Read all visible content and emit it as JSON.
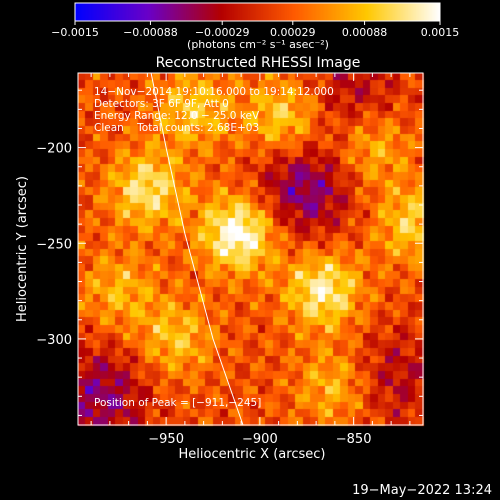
{
  "chart_data": {
    "type": "heatmap",
    "title": "Reconstructed RHESSI Image",
    "xlabel": "Heliocentric X (arcsec)",
    "ylabel": "Heliocentric Y (arcsec)",
    "xlim": [
      -997,
      -813
    ],
    "ylim": [
      -345,
      -161
    ],
    "x_ticks": [
      -950,
      -900,
      -850
    ],
    "y_ticks": [
      -200,
      -250,
      -300
    ],
    "x_tick_labels": [
      "−950",
      "−900",
      "−850"
    ],
    "y_tick_labels": [
      "−200",
      "−250",
      "−300"
    ],
    "colorbar": {
      "range": [
        -0.0015,
        0.0015
      ],
      "ticks": [
        -0.0015,
        -0.00088,
        -0.00029,
        0.00029,
        0.00088,
        0.0015
      ],
      "tick_labels": [
        "−0.0015",
        "−0.00088",
        "−0.00029",
        "0.00029",
        "0.00088",
        "0.0015"
      ],
      "label": "(photons cm⁻² s⁻¹ asec⁻²)",
      "colors": [
        "#0000ff",
        "#6a00c8",
        "#b40000",
        "#ff5a00",
        "#ffc800",
        "#ffffff"
      ]
    },
    "peak": {
      "x": -911,
      "y": -245
    },
    "sources": [
      {
        "x": -911,
        "y": -245,
        "intensity": 0.00138
      },
      {
        "x": -866,
        "y": -275,
        "intensity": 0.0011
      },
      {
        "x": -960,
        "y": -222,
        "intensity": 0.00098
      },
      {
        "x": -887,
        "y": -185,
        "intensity": 0.00085
      },
      {
        "x": -818,
        "y": -240,
        "intensity": 0.0008
      },
      {
        "x": -935,
        "y": -180,
        "intensity": 0.00075
      },
      {
        "x": -945,
        "y": -300,
        "intensity": 0.0007
      },
      {
        "x": -860,
        "y": -325,
        "intensity": 0.00065
      },
      {
        "x": -975,
        "y": -275,
        "intensity": 0.0006
      },
      {
        "x": -840,
        "y": -200,
        "intensity": 0.00065
      }
    ],
    "negative_regions": [
      {
        "x": -877,
        "y": -222,
        "intensity": -0.0009
      },
      {
        "x": -985,
        "y": -330,
        "intensity": -0.0008
      },
      {
        "x": -850,
        "y": -172,
        "intensity": -0.0005
      },
      {
        "x": -828,
        "y": -320,
        "intensity": -0.0005
      }
    ],
    "limb": [
      [
        -958,
        -161
      ],
      [
        -950,
        -200
      ],
      [
        -940,
        -245
      ],
      [
        -925,
        -300
      ],
      [
        -909,
        -345
      ]
    ]
  },
  "annotations": {
    "time": "14−Nov−2014 19:10:16.000 to 19:14:12.000",
    "detectors": "Detectors: 3F 6F 9F, Att 0",
    "energy": "Energy Range: 12.0 − 25.0 keV",
    "clean": "Clean    Total counts: 2.68E+03",
    "peak": "Position of Peak = [−911,−245]"
  },
  "footer": {
    "date": "19−May−2022 13:24"
  }
}
